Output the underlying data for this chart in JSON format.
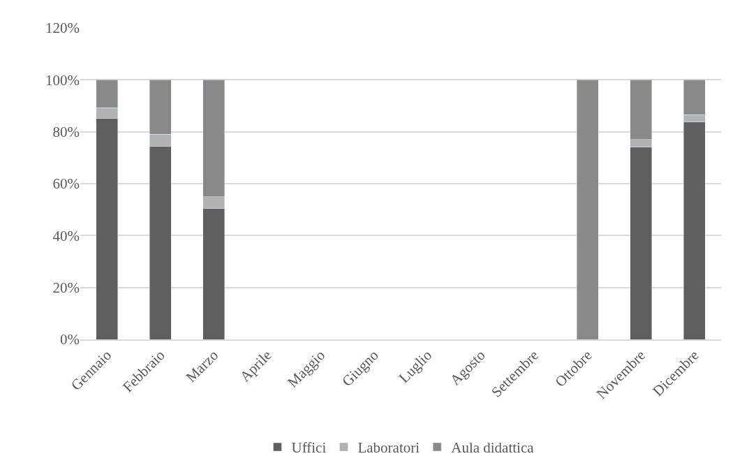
{
  "chart_data": {
    "type": "bar",
    "stacked": true,
    "categories": [
      "Gennaio",
      "Febbraio",
      "Marzo",
      "Aprile",
      "Maggio",
      "Giugno",
      "Luglio",
      "Agosto",
      "Settembre",
      "Ottobre",
      "Novembre",
      "Dicembre"
    ],
    "series": [
      {
        "name": "Uffici",
        "color": "#5f5f5f",
        "values": [
          85.2,
          74.5,
          50.5,
          null,
          null,
          null,
          null,
          null,
          null,
          null,
          74.0,
          83.7
        ]
      },
      {
        "name": "Laboratori",
        "color": "#b2b2b2",
        "values": [
          4.1,
          4.5,
          4.5,
          null,
          null,
          null,
          null,
          null,
          null,
          null,
          3.0,
          2.9
        ]
      },
      {
        "name": "Aula didattica",
        "color": "#898989",
        "values": [
          10.7,
          21.0,
          45.0,
          null,
          null,
          null,
          null,
          null,
          null,
          100,
          23.0,
          13.4
        ]
      }
    ],
    "ylim": [
      0,
      120
    ],
    "yticks": [
      {
        "value": 0,
        "label": "0%"
      },
      {
        "value": 20,
        "label": "20%"
      },
      {
        "value": 40,
        "label": "40%"
      },
      {
        "value": 60,
        "label": "60%"
      },
      {
        "value": 80,
        "label": "80%"
      },
      {
        "value": 100,
        "label": "100%"
      },
      {
        "value": 120,
        "label": "120%"
      }
    ],
    "grid": "y",
    "legend": "bottom"
  }
}
